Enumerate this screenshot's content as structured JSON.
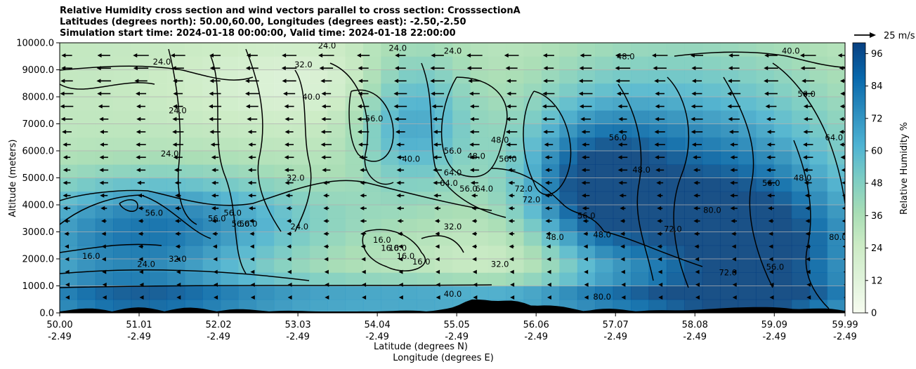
{
  "chart_data": {
    "type": "contour",
    "title": [
      "Relative Humidity cross section and wind vectors parallel to cross section: CrosssectionA",
      "Latitudes (degrees north): 50.00,60.00, Longitudes (degrees east): -2.50,-2.50",
      "Simulation start time: 2024-01-18 00:00:00, Valid time: 2024-01-18 22:00:00"
    ],
    "ylabel": "Altitude (meters)",
    "xlabel_lat": "Latitude (degrees N)",
    "xlabel_lon": "Longitude (degrees E)",
    "ylim": [
      0,
      10000
    ],
    "y_ticks": [
      "0.0",
      "1000.0",
      "2000.0",
      "3000.0",
      "4000.0",
      "5000.0",
      "6000.0",
      "7000.0",
      "8000.0",
      "9000.0",
      "10000.0"
    ],
    "x_ticks": [
      {
        "lat": "50.00",
        "lon": "-2.49"
      },
      {
        "lat": "51.01",
        "lon": "-2.49"
      },
      {
        "lat": "52.02",
        "lon": "-2.49"
      },
      {
        "lat": "53.03",
        "lon": "-2.49"
      },
      {
        "lat": "54.04",
        "lon": "-2.49"
      },
      {
        "lat": "55.05",
        "lon": "-2.49"
      },
      {
        "lat": "56.06",
        "lon": "-2.49"
      },
      {
        "lat": "57.07",
        "lon": "-2.49"
      },
      {
        "lat": "58.08",
        "lon": "-2.49"
      },
      {
        "lat": "59.09",
        "lon": "-2.49"
      },
      {
        "lat": "59.99",
        "lon": "-2.49"
      }
    ],
    "xlim": [
      50.0,
      59.99
    ],
    "grid": "horizontal",
    "colorbar": {
      "label": "Relative Humidity %",
      "ticks": [
        "0",
        "12",
        "24",
        "36",
        "48",
        "60",
        "72",
        "84",
        "96"
      ],
      "range": [
        0,
        100
      ],
      "colormap": "GnBu"
    },
    "quiver_key": {
      "label": "25 m/s",
      "magnitude": 25
    },
    "contour_labels": [
      {
        "text": "24.0",
        "lat": 53.4,
        "alt": 9900
      },
      {
        "text": "24.0",
        "lat": 54.3,
        "alt": 9800
      },
      {
        "text": "24.0",
        "lat": 55.0,
        "alt": 9700
      },
      {
        "text": "24.0",
        "lat": 51.3,
        "alt": 9300
      },
      {
        "text": "24.0",
        "lat": 51.5,
        "alt": 7500
      },
      {
        "text": "24.0",
        "lat": 51.4,
        "alt": 5900
      },
      {
        "text": "24.0",
        "lat": 51.1,
        "alt": 1800
      },
      {
        "text": "24.0",
        "lat": 53.05,
        "alt": 3200
      },
      {
        "text": "32.0",
        "lat": 53.1,
        "alt": 9200
      },
      {
        "text": "32.0",
        "lat": 53.0,
        "alt": 5000
      },
      {
        "text": "32.0",
        "lat": 51.5,
        "alt": 2000
      },
      {
        "text": "32.0",
        "lat": 55.0,
        "alt": 3200
      },
      {
        "text": "32.0",
        "lat": 55.6,
        "alt": 1800
      },
      {
        "text": "40.0",
        "lat": 53.2,
        "alt": 8000
      },
      {
        "text": "40.0",
        "lat": 54.47,
        "alt": 5700
      },
      {
        "text": "40.0",
        "lat": 59.3,
        "alt": 9700
      },
      {
        "text": "40.0",
        "lat": 55.0,
        "alt": 700
      },
      {
        "text": "48.0",
        "lat": 55.6,
        "alt": 6400
      },
      {
        "text": "48.0",
        "lat": 55.3,
        "alt": 5800
      },
      {
        "text": "48.0",
        "lat": 57.2,
        "alt": 9500
      },
      {
        "text": "48.0",
        "lat": 57.4,
        "alt": 5300
      },
      {
        "text": "48.0",
        "lat": 56.3,
        "alt": 2800
      },
      {
        "text": "48.0",
        "lat": 56.9,
        "alt": 2900
      },
      {
        "text": "48.0",
        "lat": 59.45,
        "alt": 5000
      },
      {
        "text": "56.0",
        "lat": 54.0,
        "alt": 7200
      },
      {
        "text": "56.0",
        "lat": 55.0,
        "alt": 6000
      },
      {
        "text": "56.0",
        "lat": 55.2,
        "alt": 4600
      },
      {
        "text": "56.0",
        "lat": 55.7,
        "alt": 5700
      },
      {
        "text": "56.0",
        "lat": 56.7,
        "alt": 3600
      },
      {
        "text": "56.0",
        "lat": 57.1,
        "alt": 6500
      },
      {
        "text": "56.0",
        "lat": 59.5,
        "alt": 8100
      },
      {
        "text": "56.0",
        "lat": 59.05,
        "alt": 4800
      },
      {
        "text": "56.0",
        "lat": 59.1,
        "alt": 1700
      },
      {
        "text": "56.0",
        "lat": 51.2,
        "alt": 3700
      },
      {
        "text": "56.0",
        "lat": 52.0,
        "alt": 3500
      },
      {
        "text": "56.0",
        "lat": 52.2,
        "alt": 3700
      },
      {
        "text": "56.0",
        "lat": 52.3,
        "alt": 3300
      },
      {
        "text": "56.0",
        "lat": 52.4,
        "alt": 3300
      },
      {
        "text": "64.0",
        "lat": 55.0,
        "alt": 5200
      },
      {
        "text": "64.0",
        "lat": 54.95,
        "alt": 4800
      },
      {
        "text": "64.0",
        "lat": 55.4,
        "alt": 4600
      },
      {
        "text": "64.0",
        "lat": 59.85,
        "alt": 6500
      },
      {
        "text": "72.0",
        "lat": 55.9,
        "alt": 4600
      },
      {
        "text": "72.0",
        "lat": 56.0,
        "alt": 4200
      },
      {
        "text": "72.0",
        "lat": 57.8,
        "alt": 3100
      },
      {
        "text": "72.0",
        "lat": 58.5,
        "alt": 1500
      },
      {
        "text": "80.0",
        "lat": 58.3,
        "alt": 3800
      },
      {
        "text": "80.0",
        "lat": 59.9,
        "alt": 2800
      },
      {
        "text": "80.0",
        "lat": 56.9,
        "alt": 600
      },
      {
        "text": "16.0",
        "lat": 50.4,
        "alt": 2100
      },
      {
        "text": "16.0",
        "lat": 54.1,
        "alt": 2700
      },
      {
        "text": "16.0",
        "lat": 54.2,
        "alt": 2400
      },
      {
        "text": "16.0",
        "lat": 54.3,
        "alt": 2400
      },
      {
        "text": "16.0",
        "lat": 54.4,
        "alt": 2100
      },
      {
        "text": "16.0",
        "lat": 54.6,
        "alt": 1900
      }
    ]
  }
}
